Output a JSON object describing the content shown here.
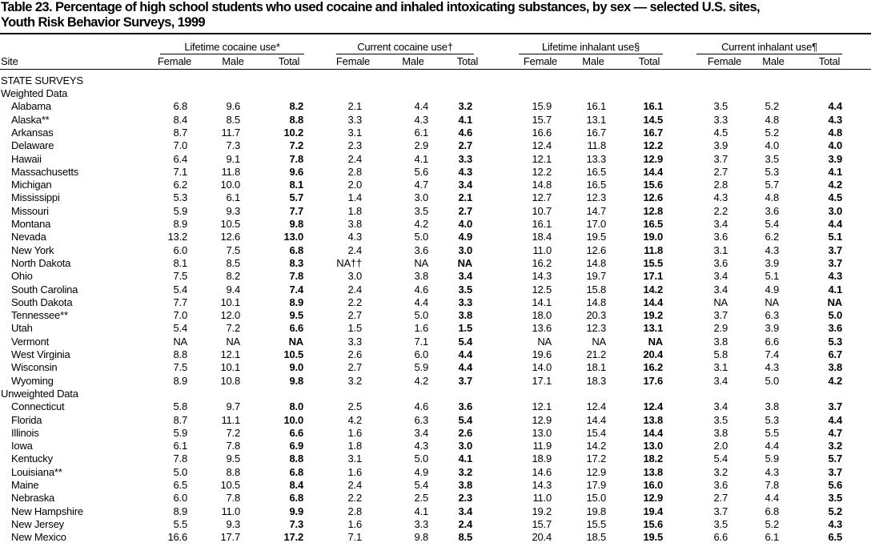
{
  "header": {
    "title": [
      "Table 23. Percentage of high school students who used cocaine and inhaled intoxicating substances, by sex — selected U.S. sites,",
      "Youth Risk Behavior Surveys, 1999"
    ]
  },
  "table": {
    "site_label": "Site",
    "groups": [
      "Lifetime cocaine use*",
      "Current cocaine use†",
      "Lifetime inhalant use§",
      "Current inhalant use¶"
    ],
    "subheaders": [
      "Female",
      "Male",
      "Total",
      "Female",
      "Male",
      "Total",
      "Female",
      "Male",
      "Total",
      "Female",
      "Male",
      "Total"
    ],
    "survey_heading": "STATE SURVEYS",
    "sections": [
      {
        "label": "Weighted Data",
        "rows": [
          {
            "site": "Alabama",
            "cells": [
              "6.8",
              "9.6",
              "8.2",
              "2.1",
              "4.4",
              "3.2",
              "15.9",
              "16.1",
              "16.1",
              "3.5",
              "5.2",
              "4.4"
            ]
          },
          {
            "site": "Alaska**",
            "cells": [
              "8.4",
              "8.5",
              "8.8",
              "3.3",
              "4.3",
              "4.1",
              "15.7",
              "13.1",
              "14.5",
              "3.3",
              "4.8",
              "4.3"
            ]
          },
          {
            "site": "Arkansas",
            "cells": [
              "8.7",
              "11.7",
              "10.2",
              "3.1",
              "6.1",
              "4.6",
              "16.6",
              "16.7",
              "16.7",
              "4.5",
              "5.2",
              "4.8"
            ]
          },
          {
            "site": "Delaware",
            "cells": [
              "7.0",
              "7.3",
              "7.2",
              "2.3",
              "2.9",
              "2.7",
              "12.4",
              "11.8",
              "12.2",
              "3.9",
              "4.0",
              "4.0"
            ]
          },
          {
            "site": "Hawaii",
            "cells": [
              "6.4",
              "9.1",
              "7.8",
              "2.4",
              "4.1",
              "3.3",
              "12.1",
              "13.3",
              "12.9",
              "3.7",
              "3.5",
              "3.9"
            ]
          },
          {
            "site": "Massachusetts",
            "cells": [
              "7.1",
              "11.8",
              "9.6",
              "2.8",
              "5.6",
              "4.3",
              "12.2",
              "16.5",
              "14.4",
              "2.7",
              "5.3",
              "4.1"
            ]
          },
          {
            "site": "Michigan",
            "cells": [
              "6.2",
              "10.0",
              "8.1",
              "2.0",
              "4.7",
              "3.4",
              "14.8",
              "16.5",
              "15.6",
              "2.8",
              "5.7",
              "4.2"
            ]
          },
          {
            "site": "Mississippi",
            "cells": [
              "5.3",
              "6.1",
              "5.7",
              "1.4",
              "3.0",
              "2.1",
              "12.7",
              "12.3",
              "12.6",
              "4.3",
              "4.8",
              "4.5"
            ]
          },
          {
            "site": "Missouri",
            "cells": [
              "5.9",
              "9.3",
              "7.7",
              "1.8",
              "3.5",
              "2.7",
              "10.7",
              "14.7",
              "12.8",
              "2.2",
              "3.6",
              "3.0"
            ]
          },
          {
            "site": "Montana",
            "cells": [
              "8.9",
              "10.5",
              "9.8",
              "3.8",
              "4.2",
              "4.0",
              "16.1",
              "17.0",
              "16.5",
              "3.4",
              "5.4",
              "4.4"
            ]
          },
          {
            "site": "Nevada",
            "cells": [
              "13.2",
              "12.6",
              "13.0",
              "4.3",
              "5.0",
              "4.9",
              "18.4",
              "19.5",
              "19.0",
              "3.6",
              "6.2",
              "5.1"
            ]
          },
          {
            "site": "New York",
            "cells": [
              "6.0",
              "7.5",
              "6.8",
              "2.4",
              "3.6",
              "3.0",
              "11.0",
              "12.6",
              "11.8",
              "3.1",
              "4.3",
              "3.7"
            ]
          },
          {
            "site": "North Dakota",
            "cells": [
              "8.1",
              "8.5",
              "8.3",
              "NA††",
              "NA",
              "NA",
              "16.2",
              "14.8",
              "15.5",
              "3.6",
              "3.9",
              "3.7"
            ]
          },
          {
            "site": "Ohio",
            "cells": [
              "7.5",
              "8.2",
              "7.8",
              "3.0",
              "3.8",
              "3.4",
              "14.3",
              "19.7",
              "17.1",
              "3.4",
              "5.1",
              "4.3"
            ]
          },
          {
            "site": "South Carolina",
            "cells": [
              "5.4",
              "9.4",
              "7.4",
              "2.4",
              "4.6",
              "3.5",
              "12.5",
              "15.8",
              "14.2",
              "3.4",
              "4.9",
              "4.1"
            ]
          },
          {
            "site": "South Dakota",
            "cells": [
              "7.7",
              "10.1",
              "8.9",
              "2.2",
              "4.4",
              "3.3",
              "14.1",
              "14.8",
              "14.4",
              "NA",
              "NA",
              "NA"
            ]
          },
          {
            "site": "Tennessee**",
            "cells": [
              "7.0",
              "12.0",
              "9.5",
              "2.7",
              "5.0",
              "3.8",
              "18.0",
              "20.3",
              "19.2",
              "3.7",
              "6.3",
              "5.0"
            ]
          },
          {
            "site": "Utah",
            "cells": [
              "5.4",
              "7.2",
              "6.6",
              "1.5",
              "1.6",
              "1.5",
              "13.6",
              "12.3",
              "13.1",
              "2.9",
              "3.9",
              "3.6"
            ]
          },
          {
            "site": "Vermont",
            "cells": [
              "NA",
              "NA",
              "NA",
              "3.3",
              "7.1",
              "5.4",
              "NA",
              "NA",
              "NA",
              "3.8",
              "6.6",
              "5.3"
            ]
          },
          {
            "site": "West Virginia",
            "cells": [
              "8.8",
              "12.1",
              "10.5",
              "2.6",
              "6.0",
              "4.4",
              "19.6",
              "21.2",
              "20.4",
              "5.8",
              "7.4",
              "6.7"
            ]
          },
          {
            "site": "Wisconsin",
            "cells": [
              "7.5",
              "10.1",
              "9.0",
              "2.7",
              "5.9",
              "4.4",
              "14.0",
              "18.1",
              "16.2",
              "3.1",
              "4.3",
              "3.8"
            ]
          },
          {
            "site": "Wyoming",
            "cells": [
              "8.9",
              "10.8",
              "9.8",
              "3.2",
              "4.2",
              "3.7",
              "17.1",
              "18.3",
              "17.6",
              "3.4",
              "5.0",
              "4.2"
            ]
          }
        ]
      },
      {
        "label": "Unweighted Data",
        "rows": [
          {
            "site": "Connecticut",
            "cells": [
              "5.8",
              "9.7",
              "8.0",
              "2.5",
              "4.6",
              "3.6",
              "12.1",
              "12.4",
              "12.4",
              "3.4",
              "3.8",
              "3.7"
            ]
          },
          {
            "site": "Florida",
            "cells": [
              "8.7",
              "11.1",
              "10.0",
              "4.2",
              "6.3",
              "5.4",
              "12.9",
              "14.4",
              "13.8",
              "3.5",
              "5.3",
              "4.4"
            ]
          },
          {
            "site": "Illinois",
            "cells": [
              "5.9",
              "7.2",
              "6.6",
              "1.6",
              "3.4",
              "2.6",
              "13.0",
              "15.4",
              "14.4",
              "3.8",
              "5.5",
              "4.7"
            ]
          },
          {
            "site": "Iowa",
            "cells": [
              "6.1",
              "7.8",
              "6.9",
              "1.8",
              "4.3",
              "3.0",
              "11.9",
              "14.2",
              "13.0",
              "2.0",
              "4.4",
              "3.2"
            ]
          },
          {
            "site": "Kentucky",
            "cells": [
              "7.8",
              "9.5",
              "8.8",
              "3.1",
              "5.0",
              "4.1",
              "18.9",
              "17.2",
              "18.2",
              "5.4",
              "5.9",
              "5.7"
            ]
          },
          {
            "site": "Louisiana**",
            "cells": [
              "5.0",
              "8.8",
              "6.8",
              "1.6",
              "4.9",
              "3.2",
              "14.6",
              "12.9",
              "13.8",
              "3.2",
              "4.3",
              "3.7"
            ]
          },
          {
            "site": "Maine",
            "cells": [
              "6.5",
              "10.5",
              "8.4",
              "2.4",
              "5.4",
              "3.8",
              "14.3",
              "17.9",
              "16.0",
              "3.6",
              "7.8",
              "5.6"
            ]
          },
          {
            "site": "Nebraska",
            "cells": [
              "6.0",
              "7.8",
              "6.8",
              "2.2",
              "2.5",
              "2.3",
              "11.0",
              "15.0",
              "12.9",
              "2.7",
              "4.4",
              "3.5"
            ]
          },
          {
            "site": "New Hampshire",
            "cells": [
              "8.9",
              "11.0",
              "9.9",
              "2.8",
              "4.1",
              "3.4",
              "19.2",
              "19.8",
              "19.4",
              "3.7",
              "6.8",
              "5.2"
            ]
          },
          {
            "site": "New Jersey",
            "cells": [
              "5.5",
              "9.3",
              "7.3",
              "1.6",
              "3.3",
              "2.4",
              "15.7",
              "15.5",
              "15.6",
              "3.5",
              "5.2",
              "4.3"
            ]
          },
          {
            "site": "New Mexico",
            "cells": [
              "16.6",
              "17.7",
              "17.2",
              "7.1",
              "9.8",
              "8.5",
              "20.4",
              "18.5",
              "19.5",
              "6.6",
              "6.1",
              "6.5"
            ]
          }
        ]
      }
    ]
  }
}
